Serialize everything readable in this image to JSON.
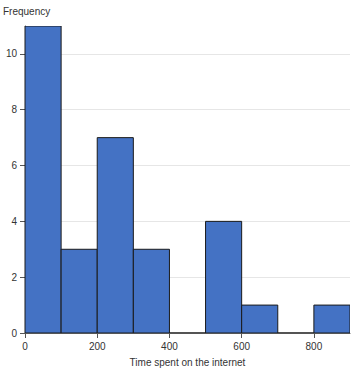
{
  "chart_data": {
    "type": "histogram",
    "x_label": "Time spent on the internet",
    "y_label": "Frequency",
    "bins": [
      0,
      100,
      200,
      300,
      400,
      500,
      600,
      700,
      800,
      900
    ],
    "counts": [
      11,
      3,
      7,
      3,
      0,
      4,
      1,
      0,
      1
    ],
    "color": "#4472c4",
    "xlim": [
      0,
      900
    ],
    "xticks": [
      0,
      200,
      400,
      600,
      800
    ],
    "ylim": [
      0,
      11
    ],
    "yticks": [
      0,
      2,
      4,
      6,
      8,
      10
    ],
    "grid": true
  }
}
